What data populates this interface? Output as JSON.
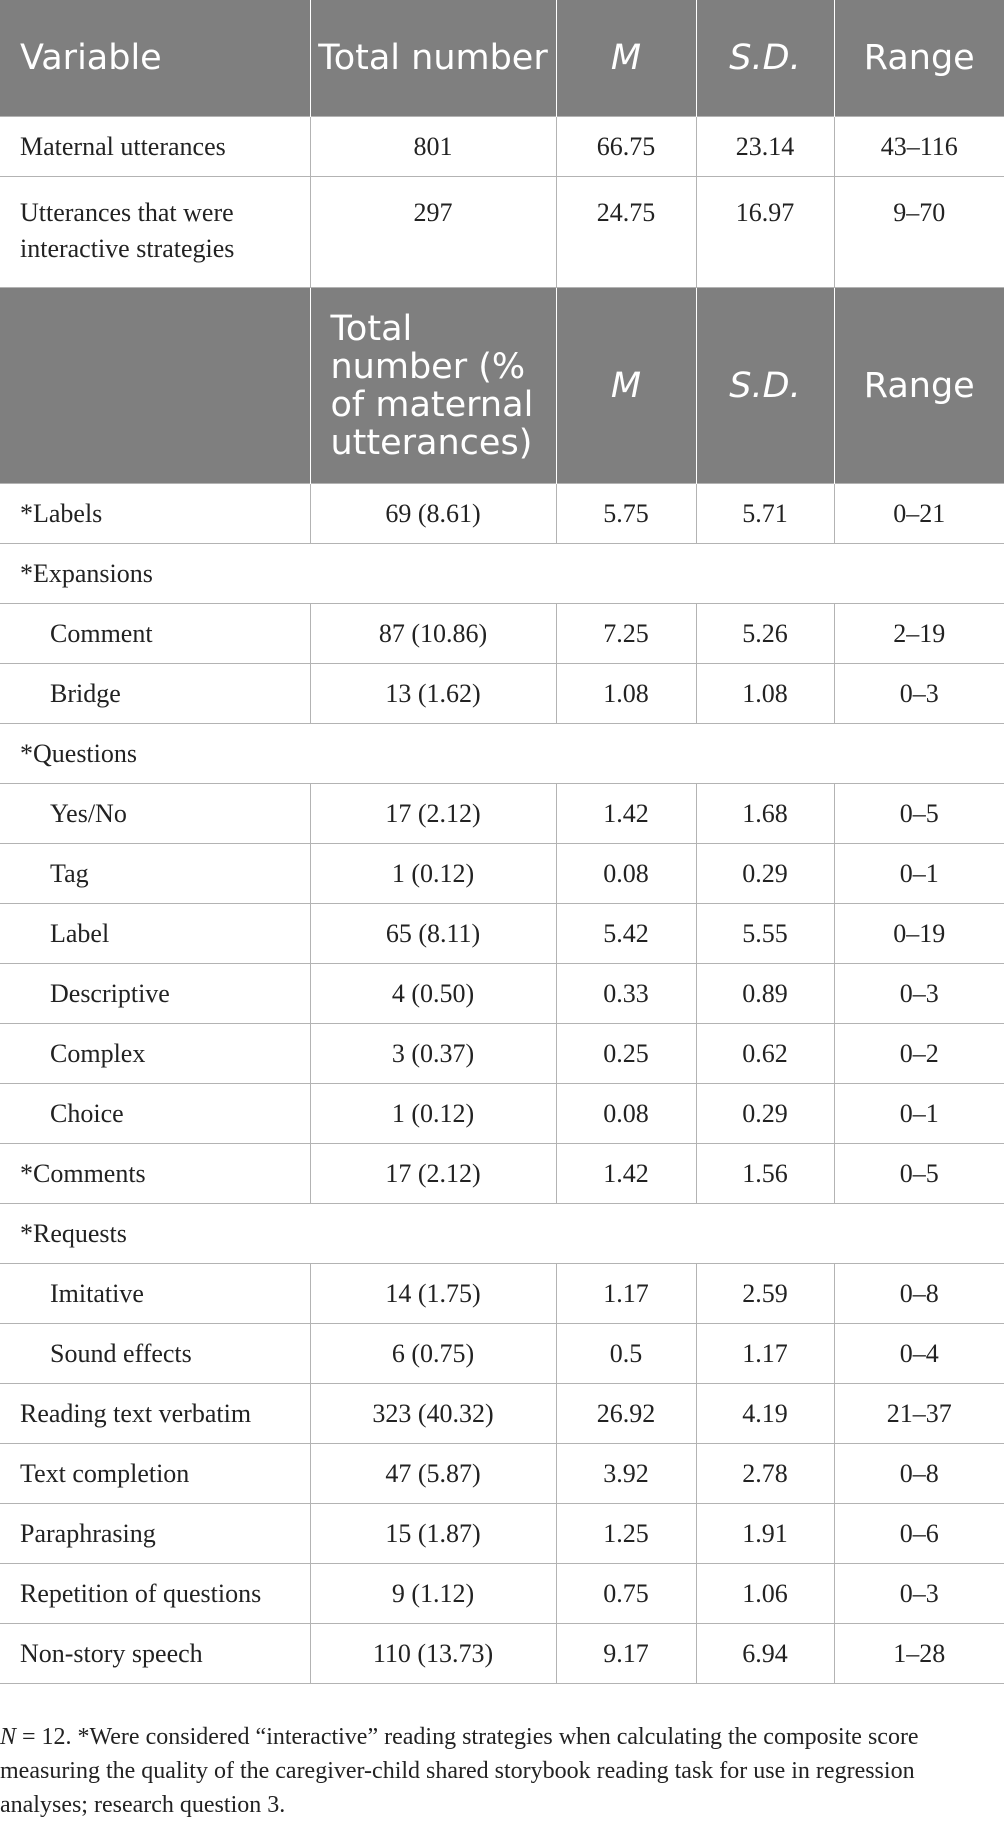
{
  "header1": {
    "variable": "Variable",
    "total_number": "Total number",
    "m": "M",
    "sd": "S.D.",
    "range": "Range"
  },
  "top_rows": [
    {
      "label": "Maternal utterances",
      "total": "801",
      "m": "66.75",
      "sd": "23.14",
      "range": "43–116"
    },
    {
      "label": "Utterances that were interactive strategies",
      "total": "297",
      "m": "24.75",
      "sd": "16.97",
      "range": "9–70"
    }
  ],
  "header2": {
    "variable": "",
    "total_number": "Total number (% of maternal utterances)",
    "m": "M",
    "sd": "S.D.",
    "range": "Range"
  },
  "rows": [
    {
      "label": "*Labels",
      "total": "69 (8.61)",
      "m": "5.75",
      "sd": "5.71",
      "range": "0–21"
    },
    {
      "label": "*Expansions",
      "total": "",
      "m": "",
      "sd": "",
      "range": ""
    },
    {
      "label": "Comment",
      "total": "87 (10.86)",
      "m": "7.25",
      "sd": "5.26",
      "range": "2–19"
    },
    {
      "label": "Bridge",
      "total": "13 (1.62)",
      "m": "1.08",
      "sd": "1.08",
      "range": "0–3"
    },
    {
      "label": "*Questions",
      "total": "",
      "m": "",
      "sd": "",
      "range": ""
    },
    {
      "label": "Yes/No",
      "total": "17 (2.12)",
      "m": "1.42",
      "sd": "1.68",
      "range": "0–5"
    },
    {
      "label": "Tag",
      "total": "1 (0.12)",
      "m": "0.08",
      "sd": "0.29",
      "range": "0–1"
    },
    {
      "label": "Label",
      "total": "65 (8.11)",
      "m": "5.42",
      "sd": "5.55",
      "range": "0–19"
    },
    {
      "label": "Descriptive",
      "total": "4 (0.50)",
      "m": "0.33",
      "sd": "0.89",
      "range": "0–3"
    },
    {
      "label": "Complex",
      "total": "3 (0.37)",
      "m": "0.25",
      "sd": "0.62",
      "range": "0–2"
    },
    {
      "label": "Choice",
      "total": "1 (0.12)",
      "m": "0.08",
      "sd": "0.29",
      "range": "0–1"
    },
    {
      "label": "*Comments",
      "total": "17 (2.12)",
      "m": "1.42",
      "sd": "1.56",
      "range": "0–5"
    },
    {
      "label": "*Requests",
      "total": "",
      "m": "",
      "sd": "",
      "range": ""
    },
    {
      "label": "Imitative",
      "total": "14 (1.75)",
      "m": "1.17",
      "sd": "2.59",
      "range": "0–8"
    },
    {
      "label": "Sound effects",
      "total": "6 (0.75)",
      "m": "0.5",
      "sd": "1.17",
      "range": "0–4"
    },
    {
      "label": "Reading text verbatim",
      "total": "323 (40.32)",
      "m": "26.92",
      "sd": "4.19",
      "range": "21–37"
    },
    {
      "label": "Text completion",
      "total": "47 (5.87)",
      "m": "3.92",
      "sd": "2.78",
      "range": "0–8"
    },
    {
      "label": "Paraphrasing",
      "total": "15 (1.87)",
      "m": "1.25",
      "sd": "1.91",
      "range": "0–6"
    },
    {
      "label": "Repetition of questions",
      "total": "9 (1.12)",
      "m": "0.75",
      "sd": "1.06",
      "range": "0–3"
    },
    {
      "label": "Non-story speech",
      "total": "110 (13.73)",
      "m": "9.17",
      "sd": "6.94",
      "range": "1–28"
    }
  ],
  "footnote": {
    "n": "N",
    "text": " = 12. *Were considered “interactive” reading strategies when calculating the composite score measuring the quality of the caregiver-child shared storybook reading task for use in regression analyses; research question 3."
  },
  "colors": {
    "header_bg": "#7f7f7f",
    "header_text": "#ffffff",
    "grid": "#b3b3b3"
  }
}
